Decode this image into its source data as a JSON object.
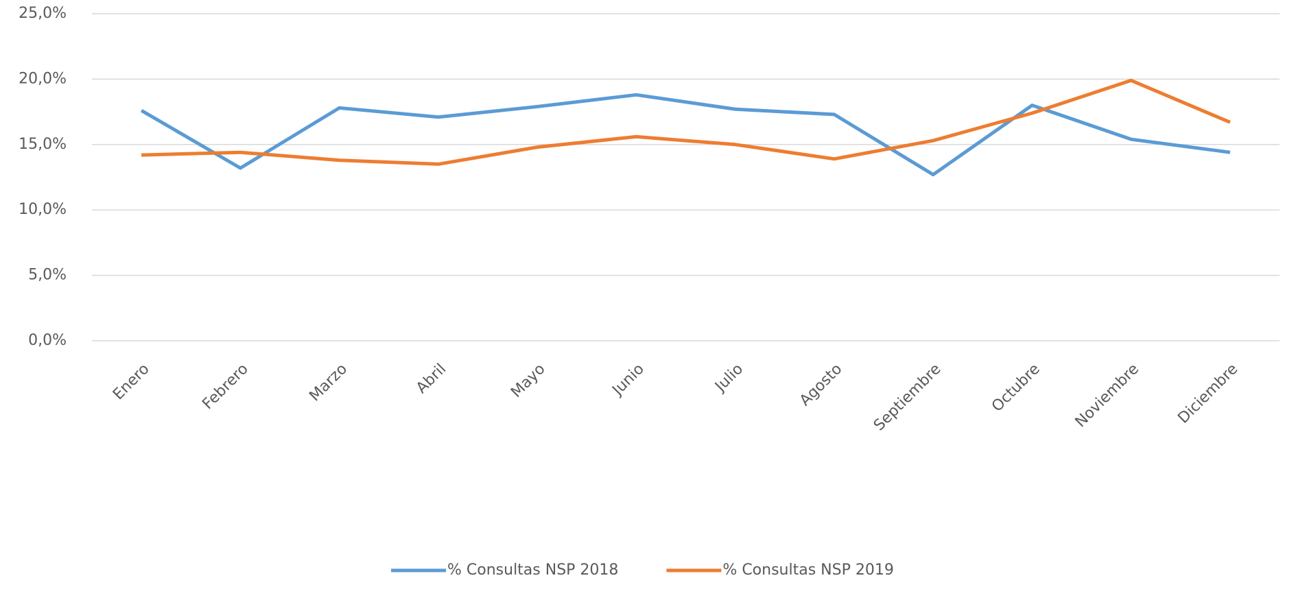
{
  "chart_data": {
    "type": "line",
    "categories": [
      "Enero",
      "Febrero",
      "Marzo",
      "Abril",
      "Mayo",
      "Junio",
      "Julio",
      "Agosto",
      "Septiembre",
      "Octubre",
      "Noviembre",
      "Diciembre"
    ],
    "series": [
      {
        "name": "% Consultas NSP 2018",
        "color": "#5b9bd5",
        "values": [
          17.6,
          13.2,
          17.8,
          17.1,
          17.9,
          18.8,
          17.7,
          17.3,
          12.7,
          18.0,
          15.4,
          14.4
        ]
      },
      {
        "name": "% Consultas NSP 2019",
        "color": "#ed7d31",
        "values": [
          14.2,
          14.4,
          13.8,
          13.5,
          14.8,
          15.6,
          15.0,
          13.9,
          15.3,
          17.4,
          19.9,
          16.7
        ]
      }
    ],
    "ylim": [
      0,
      25
    ],
    "yticks": [
      {
        "value": 0,
        "label": "0,0%"
      },
      {
        "value": 5,
        "label": "5,0%"
      },
      {
        "value": 10,
        "label": "10,0%"
      },
      {
        "value": 15,
        "label": "15,0%"
      },
      {
        "value": 20,
        "label": "20,0%"
      },
      {
        "value": 25,
        "label": "25,0%"
      }
    ],
    "grid": true,
    "legend": "bottom"
  }
}
